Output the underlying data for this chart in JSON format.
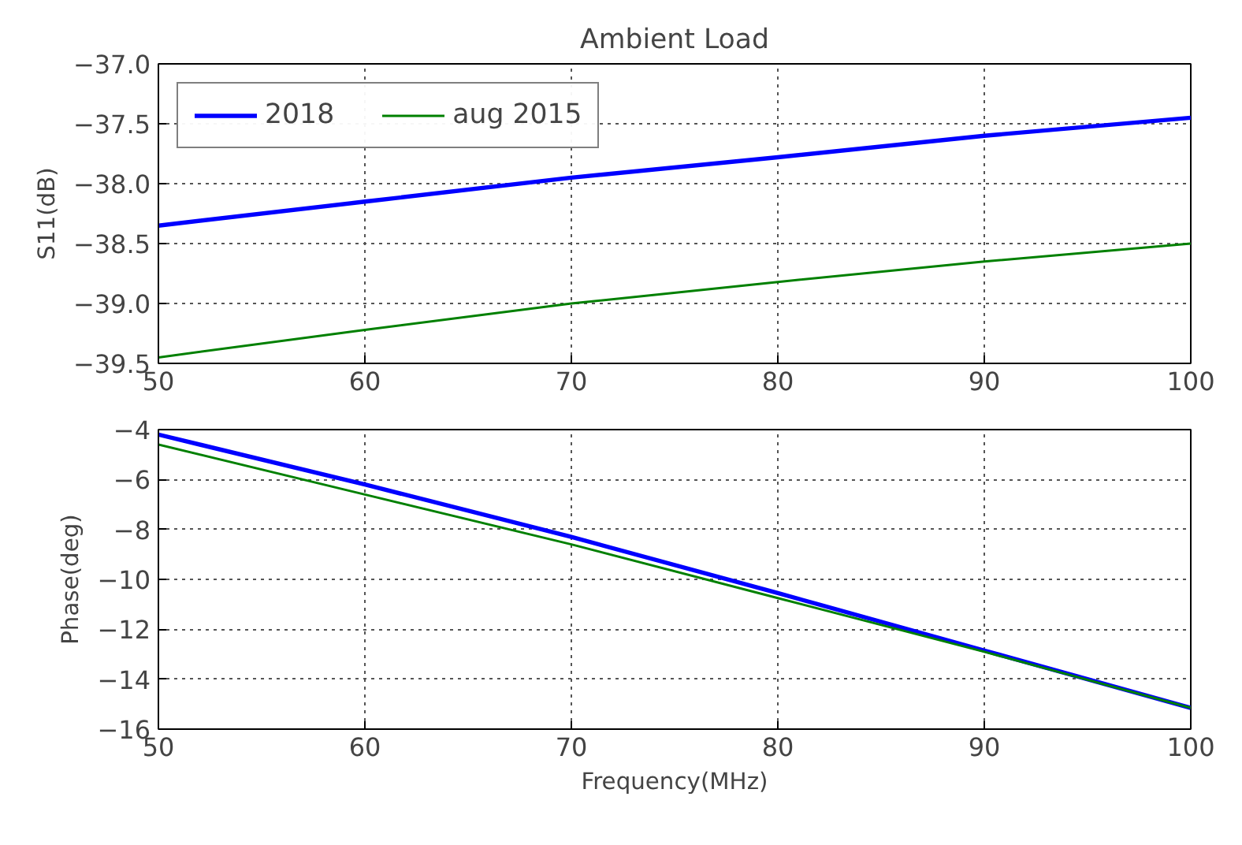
{
  "chart_data": [
    {
      "type": "line",
      "title": "Ambient Load",
      "ylabel": "S11(dB)",
      "x": [
        50,
        60,
        70,
        80,
        90,
        100
      ],
      "series": [
        {
          "name": "2018",
          "color": "#0000ff",
          "values": [
            -38.35,
            -38.15,
            -37.95,
            -37.78,
            -37.6,
            -37.45
          ]
        },
        {
          "name": "aug 2015",
          "color": "#008000",
          "values": [
            -39.45,
            -39.22,
            -39.0,
            -38.82,
            -38.65,
            -38.5
          ]
        }
      ],
      "xlim": [
        50,
        100
      ],
      "xticks": [
        50,
        60,
        70,
        80,
        90,
        100
      ],
      "ylim": [
        -39.5,
        -37.0
      ],
      "yticks": [
        {
          "value": -39.5,
          "label": "−39.5"
        },
        {
          "value": -39.0,
          "label": "−39.0"
        },
        {
          "value": -38.5,
          "label": "−38.5"
        },
        {
          "value": -38.0,
          "label": "−38.0"
        },
        {
          "value": -37.5,
          "label": "−37.5"
        },
        {
          "value": -37.0,
          "label": "−37.0"
        }
      ],
      "grid": true,
      "legend": "top left",
      "line_style": "solid"
    },
    {
      "type": "line",
      "xlabel": "Frequency(MHz)",
      "ylabel": "Phase(deg)",
      "x": [
        50,
        60,
        70,
        80,
        90,
        100
      ],
      "series": [
        {
          "color": "#0000ff",
          "values": [
            -4.2,
            -6.2,
            -8.3,
            -10.55,
            -12.85,
            -15.15
          ]
        },
        {
          "color": "#008000",
          "values": [
            -4.6,
            -6.6,
            -8.6,
            -10.75,
            -12.9,
            -15.15
          ]
        }
      ],
      "xlim": [
        50,
        100
      ],
      "xticks": [
        50,
        60,
        70,
        80,
        90,
        100
      ],
      "ylim": [
        -16,
        -4
      ],
      "yticks": [
        {
          "value": -16,
          "label": "−16"
        },
        {
          "value": -14,
          "label": "−14"
        },
        {
          "value": -12,
          "label": "−12"
        },
        {
          "value": -10,
          "label": "−10"
        },
        {
          "value": -8,
          "label": "−8"
        },
        {
          "value": -6,
          "label": "−6"
        },
        {
          "value": -4,
          "label": "−4"
        }
      ],
      "grid": true,
      "line_style": "solid"
    }
  ]
}
